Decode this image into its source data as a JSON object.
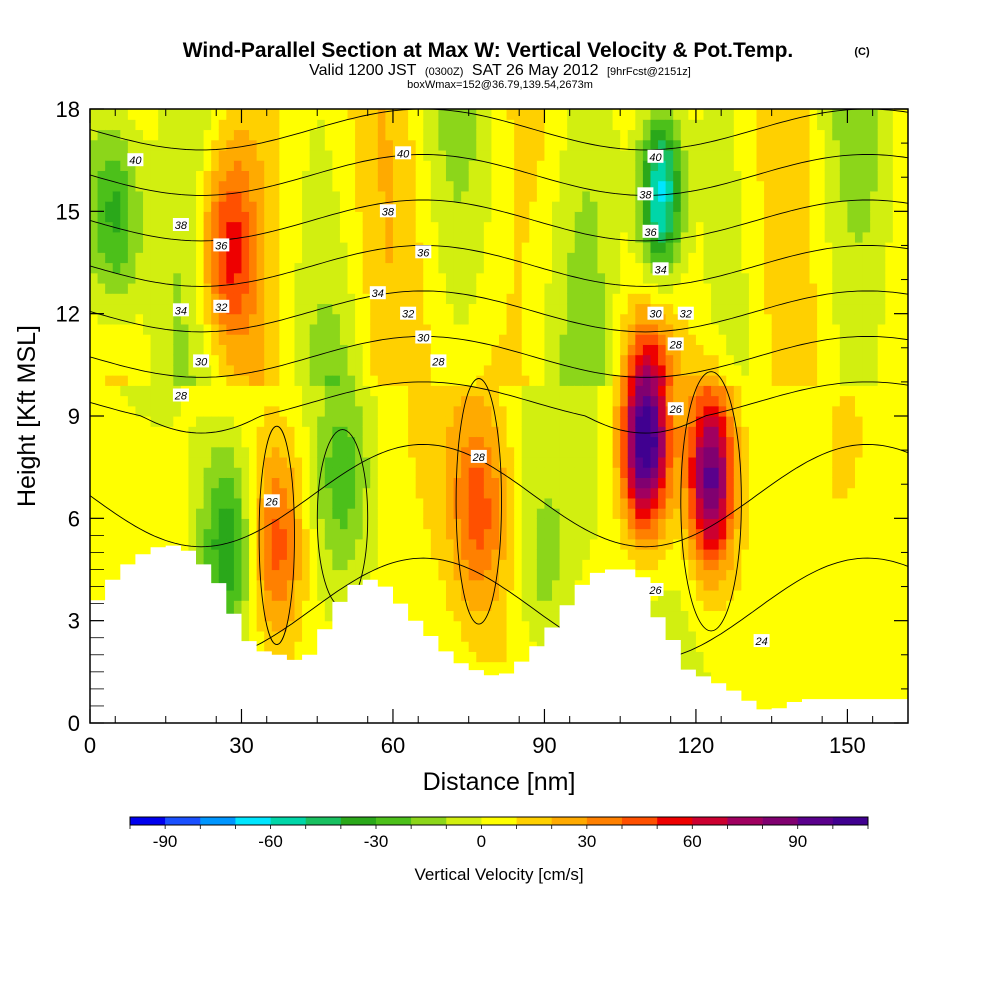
{
  "chart_data": {
    "type": "heatmap",
    "title": "Wind-Parallel Section at Max W: Vertical Velocity & Pot.Temp.",
    "title_mark": "(C)",
    "subtitle_parts": [
      "Valid 1200 JST",
      "(0300Z)",
      "SAT 26 May 2012",
      "[9hrFcst@2151z]"
    ],
    "subtitle_small": "boxWmax=152@36.79,139.54,2673m",
    "xlabel": "Distance [nm]",
    "ylabel": "Height [Kft MSL]",
    "xlim": [
      0,
      162
    ],
    "ylim": [
      0,
      18
    ],
    "x_ticks": [
      0,
      30,
      60,
      90,
      120,
      150
    ],
    "y_ticks": [
      0,
      3,
      6,
      9,
      12,
      15,
      18
    ],
    "colorbar": {
      "label": "Vertical Velocity [cm/s]",
      "ticks": [
        -90,
        -60,
        -30,
        0,
        30,
        60,
        90
      ],
      "range": [
        -100,
        110
      ],
      "step": 10,
      "colors": [
        "#0000ee",
        "#1a50ff",
        "#0096ff",
        "#00e6ff",
        "#00d6a8",
        "#18c060",
        "#2aa81a",
        "#4cc01a",
        "#8cd61a",
        "#d2ef10",
        "#ffff00",
        "#ffd000",
        "#ffaa00",
        "#ff8000",
        "#ff5000",
        "#ee0000",
        "#cc0030",
        "#a00060",
        "#800070",
        "#5a008c",
        "#400090"
      ]
    },
    "theta_contours": {
      "units": "pot. temp",
      "levels": [
        24,
        26,
        28,
        30,
        32,
        34,
        36,
        38,
        40
      ],
      "labels": [
        {
          "text": "40",
          "x": 9,
          "y": 16.5
        },
        {
          "text": "38",
          "x": 18,
          "y": 14.6
        },
        {
          "text": "36",
          "x": 26,
          "y": 14
        },
        {
          "text": "34",
          "x": 18,
          "y": 12.1
        },
        {
          "text": "32",
          "x": 26,
          "y": 12.2
        },
        {
          "text": "30",
          "x": 22,
          "y": 10.6
        },
        {
          "text": "28",
          "x": 18,
          "y": 9.6
        },
        {
          "text": "40",
          "x": 62,
          "y": 16.7
        },
        {
          "text": "38",
          "x": 59,
          "y": 15
        },
        {
          "text": "36",
          "x": 66,
          "y": 13.8
        },
        {
          "text": "34",
          "x": 57,
          "y": 12.6
        },
        {
          "text": "32",
          "x": 63,
          "y": 12
        },
        {
          "text": "30",
          "x": 66,
          "y": 11.3
        },
        {
          "text": "28",
          "x": 69,
          "y": 10.6
        },
        {
          "text": "40",
          "x": 112,
          "y": 16.6
        },
        {
          "text": "38",
          "x": 110,
          "y": 15.5
        },
        {
          "text": "36",
          "x": 111,
          "y": 14.4
        },
        {
          "text": "34",
          "x": 113,
          "y": 13.3
        },
        {
          "text": "30",
          "x": 112,
          "y": 12
        },
        {
          "text": "32",
          "x": 118,
          "y": 12
        },
        {
          "text": "28",
          "x": 116,
          "y": 11.1
        },
        {
          "text": "26",
          "x": 116,
          "y": 9.2
        },
        {
          "text": "28",
          "x": 77,
          "y": 7.8
        },
        {
          "text": "26",
          "x": 36,
          "y": 6.5
        },
        {
          "text": "26",
          "x": 112,
          "y": 3.9
        },
        {
          "text": "24",
          "x": 133,
          "y": 2.4
        }
      ]
    },
    "terrain_profile": {
      "x": [
        0,
        3,
        6,
        9,
        12,
        15,
        18,
        21,
        24,
        27,
        30,
        33,
        36,
        39,
        42,
        45,
        48,
        51,
        54,
        57,
        60,
        63,
        66,
        69,
        72,
        75,
        78,
        81,
        84,
        87,
        90,
        93,
        96,
        99,
        102,
        105,
        108,
        110,
        112,
        115,
        118,
        121,
        124,
        127,
        130,
        133,
        136,
        139,
        142,
        145,
        150,
        155,
        160,
        162
      ],
      "height_kft": [
        3.3,
        3.9,
        4.5,
        4.8,
        5.1,
        5.2,
        5.2,
        4.9,
        4.4,
        3.8,
        2.6,
        2.2,
        2.0,
        2.0,
        1.7,
        2.3,
        3.2,
        3.9,
        4.2,
        4.2,
        3.8,
        3.2,
        2.8,
        2.3,
        1.9,
        1.6,
        1.5,
        1.3,
        1.6,
        2.0,
        2.5,
        3.1,
        3.8,
        4.3,
        4.5,
        4.5,
        4.5,
        4.2,
        3.2,
        2.6,
        1.6,
        1.4,
        1.2,
        1.0,
        0.7,
        0.4,
        0.4,
        0.6,
        0.7,
        0.7,
        0.7,
        0.7,
        0.7,
        0.7
      ]
    },
    "w_features": [
      {
        "x": 110,
        "y": 8.3,
        "w_cms": 110
      },
      {
        "x": 123,
        "y": 7.2,
        "w_cms": 90
      },
      {
        "x": 37,
        "y": 5.2,
        "w_cms": 45
      },
      {
        "x": 77,
        "y": 6.2,
        "w_cms": 35
      },
      {
        "x": 27,
        "y": 14,
        "w_cms": 50
      },
      {
        "x": 113,
        "y": 15.5,
        "w_cms": -80
      },
      {
        "x": 5,
        "y": 15,
        "w_cms": -45
      },
      {
        "x": 27,
        "y": 5.2,
        "w_cms": -40
      },
      {
        "x": 50,
        "y": 7.2,
        "w_cms": -25
      },
      {
        "x": 90,
        "y": 4.2,
        "w_cms": -20
      }
    ]
  }
}
